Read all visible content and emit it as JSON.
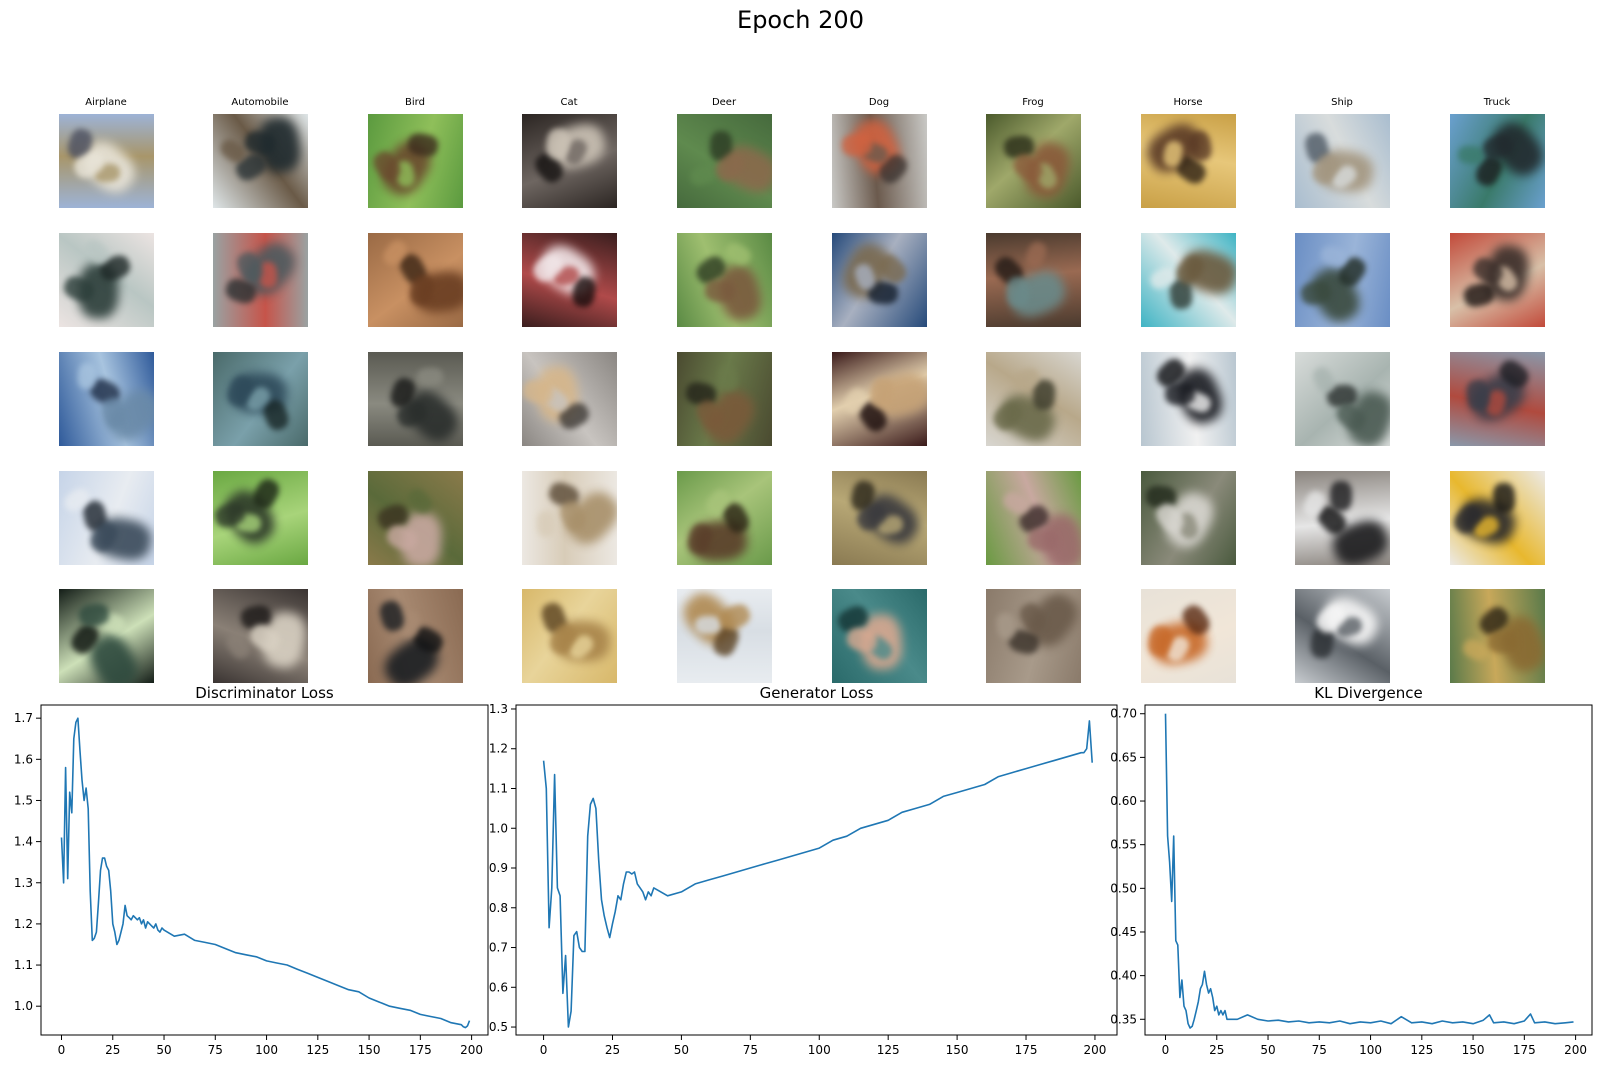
{
  "figure": {
    "title": "Epoch 200"
  },
  "class_labels": [
    "Airplane",
    "Automobile",
    "Bird",
    "Cat",
    "Deer",
    "Dog",
    "Frog",
    "Horse",
    "Ship",
    "Truck"
  ],
  "samples": [
    [
      {
        "bg": "#9db3d6",
        "blob": "#e8e4d8",
        "accent": "#a8966a",
        "dark": "#4b4f60"
      },
      {
        "bg": "#dfe6e8",
        "blob": "#1f2a2e",
        "accent": "#6a5a47",
        "dark": "#2a3336"
      },
      {
        "bg": "#5b9a3f",
        "blob": "#6a4a2e",
        "accent": "#8fbf5a",
        "dark": "#3b2a1d"
      },
      {
        "bg": "#2b2522",
        "blob": "#cbc2b5",
        "accent": "#6e6661",
        "dark": "#141110"
      },
      {
        "bg": "#466a3d",
        "blob": "#8a6a4c",
        "accent": "#5f8a4e",
        "dark": "#2c3b24"
      },
      {
        "bg": "#c9c9c6",
        "blob": "#d06240",
        "accent": "#6b5a4d",
        "dark": "#3b3431"
      },
      {
        "bg": "#4b5a2c",
        "blob": "#8a5a3a",
        "accent": "#9fa86a",
        "dark": "#2a2d19"
      },
      {
        "bg": "#c9a046",
        "blob": "#5a3a26",
        "accent": "#e7c77a",
        "dark": "#2d2014"
      },
      {
        "bg": "#a9bdcf",
        "blob": "#a39680",
        "accent": "#d8dcdc",
        "dark": "#4f5a65"
      },
      {
        "bg": "#6aa0cf",
        "blob": "#222a2e",
        "accent": "#3a7a6a",
        "dark": "#1a1c1c"
      }
    ],
    [
      {
        "bg": "#ece4e2",
        "blob": "#2c3e3a",
        "accent": "#b9c6c3",
        "dark": "#1d2726"
      },
      {
        "bg": "#9aa2a2",
        "blob": "#4e5a5e",
        "accent": "#c6544a",
        "dark": "#2b3031"
      },
      {
        "bg": "#9a6a45",
        "blob": "#6a3e22",
        "accent": "#c89062",
        "dark": "#3b2515"
      },
      {
        "bg": "#3a1e1e",
        "blob": "#f1e6e8",
        "accent": "#b04a4a",
        "dark": "#160c0c"
      },
      {
        "bg": "#5a8a44",
        "blob": "#7a5a3e",
        "accent": "#9fbf70",
        "dark": "#2d3b22"
      },
      {
        "bg": "#264a7a",
        "blob": "#7a6a50",
        "accent": "#a8b0c0",
        "dark": "#121c2a"
      },
      {
        "bg": "#4a3a2e",
        "blob": "#6a8a8a",
        "accent": "#9a6a52",
        "dark": "#211915"
      },
      {
        "bg": "#3fb4c4",
        "blob": "#6a5a3e",
        "accent": "#dfeaea",
        "dark": "#2d3a33"
      },
      {
        "bg": "#6a8ec4",
        "blob": "#3a4a3e",
        "accent": "#9ab4d8",
        "dark": "#1f2a22"
      },
      {
        "bg": "#c24a3a",
        "blob": "#3a2e2a",
        "accent": "#d8c0a8",
        "dark": "#1c1412"
      }
    ],
    [
      {
        "bg": "#2f5a9a",
        "blob": "#6a8aa8",
        "accent": "#a8c4df",
        "dark": "#1d2c45"
      },
      {
        "bg": "#4a6a6a",
        "blob": "#2e4a5a",
        "accent": "#7aa0aa",
        "dark": "#182626"
      },
      {
        "bg": "#5a5a52",
        "blob": "#2a2e2c",
        "accent": "#8a8a80",
        "dark": "#161716"
      },
      {
        "bg": "#8a8682",
        "blob": "#d6b68a",
        "accent": "#c8c4c0",
        "dark": "#3e3a36"
      },
      {
        "bg": "#4a4a30",
        "blob": "#7a5a3a",
        "accent": "#6a7a4a",
        "dark": "#24241a"
      },
      {
        "bg": "#3a1a1a",
        "blob": "#c6a276",
        "accent": "#e2cfae",
        "dark": "#180a0a"
      },
      {
        "bg": "#d8d6d0",
        "blob": "#6a6a4a",
        "accent": "#b8a88a",
        "dark": "#3a3a2a"
      },
      {
        "bg": "#b8c6d0",
        "blob": "#1a1c22",
        "accent": "#f1f1f1",
        "dark": "#0e0f12"
      },
      {
        "bg": "#d8dcda",
        "blob": "#4a5a52",
        "accent": "#a8b4b0",
        "dark": "#2a302e"
      },
      {
        "bg": "#8a98aa",
        "blob": "#3a3e4a",
        "accent": "#b04a3e",
        "dark": "#1c1e24"
      }
    ],
    [
      {
        "bg": "#c6d4e8",
        "blob": "#3a4a5a",
        "accent": "#e8ecf1",
        "dark": "#1d252e"
      },
      {
        "bg": "#6aa842",
        "blob": "#2e3a2a",
        "accent": "#a8d47a",
        "dark": "#1a2216"
      },
      {
        "bg": "#8a7a4a",
        "blob": "#c8a8a0",
        "accent": "#5a6a3a",
        "dark": "#3a3220"
      },
      {
        "bg": "#ece8e2",
        "blob": "#a8906a",
        "accent": "#d8ccb8",
        "dark": "#5a4a36"
      },
      {
        "bg": "#6a9a4a",
        "blob": "#5a3e2a",
        "accent": "#a8c47a",
        "dark": "#2a2214"
      },
      {
        "bg": "#8a7a52",
        "blob": "#3a3a3e",
        "accent": "#b8a876",
        "dark": "#2a261a"
      },
      {
        "bg": "#6a9a42",
        "blob": "#9a6a6a",
        "accent": "#c8a8a0",
        "dark": "#3a2a2a"
      },
      {
        "bg": "#4a5a3e",
        "blob": "#d8d6d0",
        "accent": "#8a8a7a",
        "dark": "#222a1c"
      },
      {
        "bg": "#8a847e",
        "blob": "#1c1c1e",
        "accent": "#e6e6e6",
        "dark": "#0e0e0f"
      },
      {
        "bg": "#eceae6",
        "blob": "#2a2a2e",
        "accent": "#e8b82e",
        "dark": "#141416"
      }
    ],
    [
      {
        "bg": "#141e18",
        "blob": "#2e4a3e",
        "accent": "#cde0b8",
        "dark": "#0a100c"
      },
      {
        "bg": "#3a3432",
        "blob": "#d8d0c2",
        "accent": "#8a8076",
        "dark": "#1c1918"
      },
      {
        "bg": "#8a6a52",
        "blob": "#1a1e22",
        "accent": "#a88a72",
        "dark": "#0e1012"
      },
      {
        "bg": "#d8b86a",
        "blob": "#a8844a",
        "accent": "#e8d49a",
        "dark": "#5a4220"
      },
      {
        "bg": "#e8ecf0",
        "blob": "#b08a52",
        "accent": "#d8dee4",
        "dark": "#5a4224"
      },
      {
        "bg": "#2a6a6a",
        "blob": "#d8a890",
        "accent": "#4a8a8a",
        "dark": "#143434"
      },
      {
        "bg": "#8a7a6a",
        "blob": "#6a5a4a",
        "accent": "#a89a8a",
        "dark": "#3a322a"
      },
      {
        "bg": "#e8e2d8",
        "blob": "#c86a2a",
        "accent": "#f1e6d8",
        "dark": "#5a2a12"
      },
      {
        "bg": "#c8ccd0",
        "blob": "#f6f6f6",
        "accent": "#5a6066",
        "dark": "#2a2e32"
      },
      {
        "bg": "#5a7a4a",
        "blob": "#8a6a32",
        "accent": "#c8a85a",
        "dark": "#2a2214"
      }
    ]
  ],
  "chart_data": [
    {
      "type": "line",
      "title": "Discriminator Loss",
      "xlim": [
        -10,
        208
      ],
      "ylim": [
        0.93,
        1.732
      ],
      "xticks": [
        0,
        25,
        50,
        75,
        100,
        125,
        150,
        175,
        200
      ],
      "xtick_labels": [
        "0",
        "25",
        "50",
        "75",
        "100",
        "125",
        "150",
        "175",
        "200"
      ],
      "yticks": [
        1.0,
        1.1,
        1.2,
        1.3,
        1.4,
        1.5,
        1.6,
        1.7
      ],
      "ytick_labels": [
        "1.0",
        "1.1",
        "1.2",
        "1.3",
        "1.4",
        "1.5",
        "1.6",
        "1.7"
      ],
      "color": "#1f77b4",
      "x": [
        0,
        1,
        2,
        3,
        4,
        5,
        6,
        7,
        8,
        9,
        10,
        11,
        12,
        13,
        14,
        15,
        16,
        17,
        18,
        19,
        20,
        21,
        22,
        23,
        24,
        25,
        26,
        27,
        28,
        29,
        30,
        31,
        32,
        33,
        34,
        35,
        36,
        37,
        38,
        39,
        40,
        41,
        42,
        43,
        44,
        45,
        46,
        47,
        48,
        49,
        50,
        55,
        60,
        65,
        70,
        75,
        80,
        85,
        90,
        95,
        100,
        105,
        110,
        115,
        120,
        125,
        130,
        135,
        140,
        145,
        150,
        155,
        160,
        165,
        170,
        175,
        180,
        185,
        190,
        195,
        196,
        197,
        198,
        199
      ],
      "y": [
        1.41,
        1.3,
        1.58,
        1.31,
        1.52,
        1.47,
        1.65,
        1.69,
        1.7,
        1.62,
        1.55,
        1.5,
        1.53,
        1.48,
        1.28,
        1.16,
        1.165,
        1.18,
        1.25,
        1.33,
        1.36,
        1.36,
        1.34,
        1.33,
        1.28,
        1.2,
        1.18,
        1.15,
        1.16,
        1.18,
        1.2,
        1.245,
        1.22,
        1.215,
        1.21,
        1.22,
        1.215,
        1.21,
        1.215,
        1.2,
        1.21,
        1.19,
        1.205,
        1.2,
        1.195,
        1.19,
        1.2,
        1.185,
        1.18,
        1.19,
        1.185,
        1.17,
        1.175,
        1.16,
        1.155,
        1.15,
        1.14,
        1.13,
        1.125,
        1.12,
        1.11,
        1.105,
        1.1,
        1.09,
        1.08,
        1.07,
        1.06,
        1.05,
        1.04,
        1.035,
        1.02,
        1.01,
        1.0,
        0.995,
        0.99,
        0.98,
        0.975,
        0.97,
        0.96,
        0.955,
        0.95,
        0.948,
        0.952,
        0.965
      ]
    },
    {
      "type": "line",
      "title": "Generator Loss",
      "xlim": [
        -10,
        208
      ],
      "ylim": [
        0.48,
        1.31
      ],
      "xticks": [
        0,
        25,
        50,
        75,
        100,
        125,
        150,
        175,
        200
      ],
      "xtick_labels": [
        "0",
        "25",
        "50",
        "75",
        "100",
        "125",
        "150",
        "175",
        "200"
      ],
      "yticks": [
        0.5,
        0.6,
        0.7,
        0.8,
        0.9,
        1.0,
        1.1,
        1.2,
        1.3
      ],
      "ytick_labels": [
        "0.5",
        "0.6",
        "0.7",
        "0.8",
        "0.9",
        "1.0",
        "1.1",
        "1.2",
        "1.3"
      ],
      "color": "#1f77b4",
      "x": [
        0,
        1,
        2,
        3,
        4,
        5,
        6,
        7,
        8,
        9,
        10,
        11,
        12,
        13,
        14,
        15,
        16,
        17,
        18,
        19,
        20,
        21,
        22,
        23,
        24,
        25,
        26,
        27,
        28,
        29,
        30,
        31,
        32,
        33,
        34,
        35,
        36,
        37,
        38,
        39,
        40,
        45,
        50,
        55,
        60,
        65,
        70,
        75,
        80,
        85,
        90,
        95,
        100,
        105,
        110,
        115,
        120,
        125,
        130,
        135,
        140,
        145,
        150,
        155,
        160,
        165,
        170,
        175,
        180,
        185,
        190,
        195,
        196,
        197,
        198,
        199
      ],
      "y": [
        1.17,
        1.1,
        0.75,
        0.85,
        1.135,
        0.85,
        0.83,
        0.585,
        0.68,
        0.5,
        0.54,
        0.73,
        0.74,
        0.7,
        0.69,
        0.69,
        0.98,
        1.06,
        1.075,
        1.05,
        0.92,
        0.82,
        0.78,
        0.75,
        0.725,
        0.76,
        0.79,
        0.83,
        0.82,
        0.86,
        0.89,
        0.89,
        0.885,
        0.89,
        0.86,
        0.85,
        0.84,
        0.82,
        0.84,
        0.83,
        0.85,
        0.83,
        0.84,
        0.86,
        0.87,
        0.88,
        0.89,
        0.9,
        0.91,
        0.92,
        0.93,
        0.94,
        0.95,
        0.97,
        0.98,
        1.0,
        1.01,
        1.02,
        1.04,
        1.05,
        1.06,
        1.08,
        1.09,
        1.1,
        1.11,
        1.13,
        1.14,
        1.15,
        1.16,
        1.17,
        1.18,
        1.19,
        1.19,
        1.2,
        1.27,
        1.165
      ]
    },
    {
      "type": "line",
      "title": "KL Divergence",
      "xlim": [
        -10,
        208
      ],
      "ylim": [
        0.332,
        0.71
      ],
      "xticks": [
        0,
        25,
        50,
        75,
        100,
        125,
        150,
        175,
        200
      ],
      "xtick_labels": [
        "0",
        "25",
        "50",
        "75",
        "100",
        "125",
        "150",
        "175",
        "200"
      ],
      "yticks": [
        0.35,
        0.4,
        0.45,
        0.5,
        0.55,
        0.6,
        0.65,
        0.7
      ],
      "ytick_labels": [
        "0.35",
        "0.40",
        "0.45",
        "0.50",
        "0.55",
        "0.60",
        "0.65",
        "0.70"
      ],
      "color": "#1f77b4",
      "x": [
        0,
        1,
        2,
        3,
        4,
        5,
        6,
        7,
        8,
        9,
        10,
        11,
        12,
        13,
        14,
        15,
        16,
        17,
        18,
        19,
        20,
        21,
        22,
        23,
        24,
        25,
        26,
        27,
        28,
        29,
        30,
        35,
        40,
        45,
        50,
        55,
        60,
        65,
        70,
        75,
        80,
        85,
        90,
        95,
        100,
        105,
        110,
        115,
        120,
        125,
        130,
        135,
        140,
        145,
        150,
        155,
        158,
        160,
        165,
        170,
        175,
        178,
        180,
        185,
        190,
        195,
        199
      ],
      "y": [
        0.7,
        0.56,
        0.53,
        0.485,
        0.56,
        0.44,
        0.435,
        0.375,
        0.395,
        0.365,
        0.36,
        0.345,
        0.34,
        0.342,
        0.35,
        0.36,
        0.37,
        0.385,
        0.39,
        0.405,
        0.39,
        0.38,
        0.385,
        0.375,
        0.36,
        0.365,
        0.355,
        0.36,
        0.355,
        0.36,
        0.35,
        0.35,
        0.355,
        0.35,
        0.348,
        0.349,
        0.347,
        0.348,
        0.346,
        0.347,
        0.346,
        0.348,
        0.345,
        0.347,
        0.346,
        0.348,
        0.345,
        0.353,
        0.346,
        0.347,
        0.345,
        0.348,
        0.346,
        0.347,
        0.345,
        0.349,
        0.355,
        0.346,
        0.347,
        0.345,
        0.348,
        0.356,
        0.346,
        0.347,
        0.345,
        0.346,
        0.347
      ]
    }
  ]
}
